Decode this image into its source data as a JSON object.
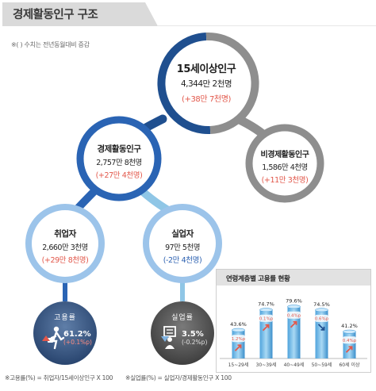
{
  "title": "경제활동인구 구조",
  "note": "※( ) 수치는 전년동월대비 증감",
  "nodes": {
    "total": {
      "title": "15세이상인구",
      "value": "4,344만 2천명",
      "change": "(+38만 7천명)"
    },
    "active": {
      "title": "경제활동인구",
      "value": "2,757만 8천명",
      "change": "(+27만 4천명)"
    },
    "inactive": {
      "title": "비경제활동인구",
      "value": "1,586만 4천명",
      "change": "(+11만 3천명)"
    },
    "employed": {
      "title": "취업자",
      "value": "2,660만 3천명",
      "change": "(+29만 8천명)"
    },
    "unemployed": {
      "title": "실업자",
      "value": "97만 5천명",
      "change": "(-2만 4천명)"
    }
  },
  "rates": {
    "employment": {
      "label": "고용률",
      "value": "61.2%",
      "change": "(+0.1%p)"
    },
    "unemployment": {
      "label": "실업률",
      "value": "3.5%",
      "change": "(-0.2%p)"
    }
  },
  "footer": {
    "employment_formula": "※고용률(%) = 취업자/15세이상인구 X 100",
    "unemployment_formula": "※실업률(%) = 실업자/경제활동인구 X 100"
  },
  "colors": {
    "navy": "#1f4f8f",
    "blue": "#2a64b4",
    "gray": "#8e8e8e",
    "light_blue": "#8fc6e6",
    "dark_gray": "#5e5e5e",
    "red": "#e2574a"
  },
  "icons": {
    "employment": "worker-icon",
    "unemployment": "job-seeker-icon",
    "up": "arrow-up-icon",
    "down": "arrow-down-icon"
  },
  "chart_data": {
    "type": "bar",
    "title": "연령계층별 고용률 현황",
    "categories": [
      "15~29세",
      "30~39세",
      "40~49세",
      "50~59세",
      "60세 이상"
    ],
    "values": [
      43.6,
      74.7,
      79.6,
      74.5,
      41.2
    ],
    "value_labels": [
      "43.6%",
      "74.7%",
      "79.6%",
      "74.5%",
      "41.2%"
    ],
    "changes": [
      "1.2%p",
      "0.1%p",
      "0.4%p",
      "0.6%p",
      "0.4%p"
    ],
    "change_direction": [
      "up",
      "up",
      "up",
      "down",
      "up"
    ],
    "ylim": [
      0,
      100
    ]
  }
}
